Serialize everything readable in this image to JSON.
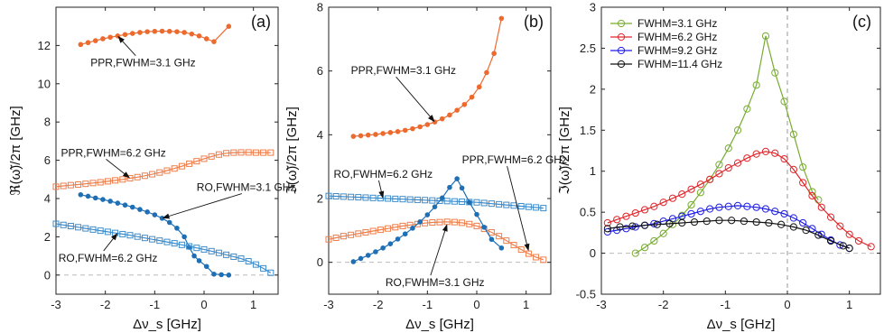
{
  "colors": {
    "ppr_orange": "#ED6A2E",
    "ro_blue": "#1F6FB5",
    "ppr_light": "#EE7E4A",
    "ro_light": "#3E8CCB",
    "c_green": "#77AC30",
    "c_red": "#E0262B",
    "c_blue": "#1E1EE6",
    "c_black": "#111111",
    "zero_line": "#BBBBBB"
  },
  "chart_data": [
    {
      "type": "line",
      "panel_label": "(a)",
      "xlabel": "Δν_s [GHz]",
      "ylabel": "ℜ(ω̃)/2π [GHz]",
      "xlim": [
        -3,
        1.5
      ],
      "ylim": [
        -1,
        14
      ],
      "xticks": [
        -3,
        -2,
        -1,
        0,
        1
      ],
      "yticks": [
        0,
        2,
        4,
        6,
        8,
        10,
        12
      ],
      "series": [
        {
          "name": "PPR,FWHM=3.1 GHz",
          "color_key": "ppr_orange",
          "marker": "dot",
          "x": [
            -2.5,
            -2.35,
            -2.2,
            -2.05,
            -1.9,
            -1.75,
            -1.6,
            -1.45,
            -1.3,
            -1.15,
            -1.0,
            -0.85,
            -0.7,
            -0.55,
            -0.4,
            -0.25,
            -0.1,
            0.05,
            0.2,
            0.5
          ],
          "y": [
            12.05,
            12.15,
            12.25,
            12.35,
            12.43,
            12.5,
            12.57,
            12.63,
            12.68,
            12.72,
            12.74,
            12.75,
            12.74,
            12.72,
            12.68,
            12.6,
            12.5,
            12.35,
            12.2,
            13.0
          ]
        },
        {
          "name": "PPR,FWHM=6.2 GHz",
          "color_key": "ppr_light",
          "marker": "square",
          "x": [
            -3.0,
            -2.85,
            -2.7,
            -2.55,
            -2.4,
            -2.25,
            -2.1,
            -1.95,
            -1.8,
            -1.65,
            -1.5,
            -1.35,
            -1.2,
            -1.05,
            -0.9,
            -0.75,
            -0.6,
            -0.45,
            -0.3,
            -0.15,
            0.0,
            0.15,
            0.3,
            0.45,
            0.6,
            0.75,
            0.9,
            1.05,
            1.2,
            1.35
          ],
          "y": [
            4.62,
            4.66,
            4.7,
            4.73,
            4.77,
            4.81,
            4.85,
            4.9,
            4.95,
            5.0,
            5.06,
            5.12,
            5.19,
            5.27,
            5.36,
            5.46,
            5.57,
            5.69,
            5.82,
            5.95,
            6.08,
            6.2,
            6.3,
            6.37,
            6.4,
            6.41,
            6.41,
            6.4,
            6.4,
            6.4
          ]
        },
        {
          "name": "RO,FWHM=3.1 GHz",
          "color_key": "ro_blue",
          "marker": "dot",
          "x": [
            -2.5,
            -2.35,
            -2.2,
            -2.05,
            -1.9,
            -1.75,
            -1.6,
            -1.45,
            -1.3,
            -1.15,
            -1.0,
            -0.85,
            -0.7,
            -0.55,
            -0.4,
            -0.3,
            -0.2,
            -0.1,
            0.05,
            0.2,
            0.35,
            0.5
          ],
          "y": [
            4.2,
            4.12,
            4.03,
            3.95,
            3.86,
            3.76,
            3.66,
            3.55,
            3.43,
            3.3,
            3.15,
            2.97,
            2.75,
            2.45,
            2.0,
            1.45,
            1.0,
            0.75,
            0.45,
            0.05,
            0.02,
            0.0
          ]
        },
        {
          "name": "RO,FWHM=6.2 GHz",
          "color_key": "ro_light",
          "marker": "square",
          "x": [
            -3.0,
            -2.85,
            -2.7,
            -2.55,
            -2.4,
            -2.25,
            -2.1,
            -1.95,
            -1.8,
            -1.65,
            -1.5,
            -1.35,
            -1.2,
            -1.05,
            -0.9,
            -0.75,
            -0.6,
            -0.45,
            -0.3,
            -0.15,
            0.0,
            0.15,
            0.3,
            0.45,
            0.6,
            0.75,
            0.9,
            1.05,
            1.2,
            1.35
          ],
          "y": [
            2.68,
            2.62,
            2.56,
            2.5,
            2.44,
            2.38,
            2.32,
            2.26,
            2.2,
            2.14,
            2.08,
            2.01,
            1.94,
            1.87,
            1.8,
            1.73,
            1.66,
            1.58,
            1.5,
            1.42,
            1.34,
            1.25,
            1.16,
            1.06,
            0.96,
            0.86,
            0.72,
            0.55,
            0.35,
            0.12
          ]
        }
      ],
      "annotations": [
        {
          "text": "PPR,FWHM=3.1 GHz",
          "tx": -2.3,
          "ty": 10.9,
          "ax": -1.75,
          "ay": 12.5
        },
        {
          "text": "PPR,FWHM=6.2 GHz",
          "tx": -2.9,
          "ty": 6.2,
          "ax": -1.5,
          "ay": 5.06
        },
        {
          "text": "RO,FWHM=3.1 GHz",
          "tx": -0.15,
          "ty": 4.4,
          "ax": -0.85,
          "ay": 2.97
        },
        {
          "text": "RO,FWHM=6.2 GHz",
          "tx": -2.95,
          "ty": 0.7,
          "ax": -1.75,
          "ay": 2.2
        }
      ]
    },
    {
      "type": "line",
      "panel_label": "(b)",
      "xlabel": "Δν_s [GHz]",
      "ylabel": "ℑ(ω̃)/2π [GHz]",
      "xlim": [
        -3,
        1.5
      ],
      "ylim": [
        -1,
        8
      ],
      "xticks": [
        -3,
        -2,
        -1,
        0,
        1
      ],
      "yticks": [
        0,
        2,
        4,
        6,
        8
      ],
      "series": [
        {
          "name": "PPR,FWHM=3.1 GHz",
          "color_key": "ppr_orange",
          "marker": "dot",
          "x": [
            -2.5,
            -2.35,
            -2.2,
            -2.05,
            -1.9,
            -1.75,
            -1.6,
            -1.45,
            -1.3,
            -1.15,
            -1.0,
            -0.85,
            -0.7,
            -0.55,
            -0.4,
            -0.25,
            -0.1,
            0.05,
            0.2,
            0.35,
            0.5
          ],
          "y": [
            3.95,
            3.97,
            3.99,
            4.01,
            4.04,
            4.07,
            4.1,
            4.14,
            4.19,
            4.25,
            4.32,
            4.4,
            4.5,
            4.62,
            4.77,
            4.95,
            5.18,
            5.5,
            5.95,
            6.55,
            7.65
          ]
        },
        {
          "name": "RO,FWHM=6.2 GHz",
          "color_key": "ro_light",
          "marker": "square",
          "x": [
            -3.0,
            -2.85,
            -2.7,
            -2.55,
            -2.4,
            -2.25,
            -2.1,
            -1.95,
            -1.8,
            -1.65,
            -1.5,
            -1.35,
            -1.2,
            -1.05,
            -0.9,
            -0.75,
            -0.6,
            -0.45,
            -0.3,
            -0.15,
            0.0,
            0.15,
            0.3,
            0.45,
            0.6,
            0.75,
            0.9,
            1.05,
            1.2,
            1.35
          ],
          "y": [
            2.08,
            2.07,
            2.06,
            2.05,
            2.04,
            2.03,
            2.02,
            2.01,
            2.0,
            1.99,
            1.98,
            1.97,
            1.96,
            1.95,
            1.94,
            1.93,
            1.92,
            1.91,
            1.9,
            1.89,
            1.88,
            1.86,
            1.84,
            1.82,
            1.8,
            1.78,
            1.76,
            1.74,
            1.72,
            1.7
          ]
        },
        {
          "name": "PPR,FWHM=6.2 GHz",
          "color_key": "ppr_light",
          "marker": "square",
          "x": [
            -3.0,
            -2.85,
            -2.7,
            -2.55,
            -2.4,
            -2.25,
            -2.1,
            -1.95,
            -1.8,
            -1.65,
            -1.5,
            -1.35,
            -1.2,
            -1.05,
            -0.9,
            -0.75,
            -0.6,
            -0.45,
            -0.3,
            -0.15,
            0.0,
            0.15,
            0.3,
            0.45,
            0.6,
            0.75,
            0.9,
            1.05,
            1.2,
            1.35
          ],
          "y": [
            0.72,
            0.77,
            0.82,
            0.86,
            0.9,
            0.94,
            0.98,
            1.02,
            1.06,
            1.1,
            1.14,
            1.17,
            1.2,
            1.23,
            1.25,
            1.26,
            1.27,
            1.26,
            1.24,
            1.2,
            1.14,
            1.05,
            0.94,
            0.82,
            0.68,
            0.54,
            0.4,
            0.27,
            0.16,
            0.08
          ]
        },
        {
          "name": "RO,FWHM=3.1 GHz",
          "color_key": "ro_blue",
          "marker": "dot",
          "x": [
            -2.5,
            -2.35,
            -2.2,
            -2.05,
            -1.9,
            -1.75,
            -1.6,
            -1.45,
            -1.3,
            -1.15,
            -1.0,
            -0.85,
            -0.7,
            -0.55,
            -0.4,
            -0.3,
            -0.15,
            0.0,
            0.15,
            0.3,
            0.5
          ],
          "y": [
            0.02,
            0.12,
            0.22,
            0.33,
            0.45,
            0.58,
            0.73,
            0.89,
            1.07,
            1.27,
            1.49,
            1.74,
            2.02,
            2.35,
            2.62,
            2.33,
            1.88,
            1.5,
            1.1,
            0.72,
            0.45
          ]
        }
      ],
      "annotations": [
        {
          "text": "PPR,FWHM=3.1 GHz",
          "tx": -2.55,
          "ty": 5.9,
          "ax": -0.85,
          "ay": 4.4
        },
        {
          "text": "RO,FWHM=6.2 GHz",
          "tx": -2.9,
          "ty": 2.65,
          "ax": -1.9,
          "ay": 2.0
        },
        {
          "text": "PPR,FWHM=6.2 GHz",
          "tx": -0.3,
          "ty": 3.1,
          "ax": 1.05,
          "ay": 0.35
        },
        {
          "text": "RO,FWHM=3.1 GHz",
          "tx": -1.85,
          "ty": -0.75,
          "ax": -0.6,
          "ay": 1.2
        }
      ]
    },
    {
      "type": "line",
      "panel_label": "(c)",
      "xlabel": "Δν_s [GHz]",
      "ylabel": "ℑ(ω̃)/2π [GHz]",
      "xlim": [
        -3,
        1.5
      ],
      "ylim": [
        -0.5,
        3
      ],
      "xticks": [
        -3,
        -2,
        -1,
        0,
        1
      ],
      "yticks": [
        -0.5,
        0,
        0.5,
        1,
        1.5,
        2,
        2.5,
        3
      ],
      "legend": "top-left",
      "series": [
        {
          "name": "FWHM=3.1 GHz",
          "color_key": "c_green",
          "x": [
            -2.45,
            -2.3,
            -2.15,
            -2.0,
            -1.85,
            -1.7,
            -1.55,
            -1.4,
            -1.25,
            -1.1,
            -0.95,
            -0.8,
            -0.65,
            -0.5,
            -0.35,
            -0.2,
            -0.05,
            0.1,
            0.25,
            0.4,
            0.5
          ],
          "y": [
            0.0,
            0.07,
            0.15,
            0.24,
            0.35,
            0.46,
            0.59,
            0.74,
            0.9,
            1.08,
            1.28,
            1.5,
            1.76,
            2.05,
            2.65,
            2.2,
            1.85,
            1.45,
            1.05,
            0.75,
            0.65
          ]
        },
        {
          "name": "FWHM=6.2 GHz",
          "color_key": "c_red",
          "x": [
            -2.9,
            -2.75,
            -2.6,
            -2.45,
            -2.3,
            -2.15,
            -2.0,
            -1.85,
            -1.7,
            -1.55,
            -1.4,
            -1.25,
            -1.1,
            -0.95,
            -0.8,
            -0.65,
            -0.5,
            -0.35,
            -0.2,
            -0.05,
            0.1,
            0.25,
            0.4,
            0.55,
            0.7,
            0.85,
            1.0,
            1.15,
            1.35
          ],
          "y": [
            0.37,
            0.41,
            0.45,
            0.49,
            0.53,
            0.57,
            0.62,
            0.67,
            0.72,
            0.78,
            0.84,
            0.9,
            0.97,
            1.04,
            1.1,
            1.16,
            1.21,
            1.24,
            1.22,
            1.15,
            1.02,
            0.86,
            0.7,
            0.56,
            0.44,
            0.33,
            0.23,
            0.15,
            0.08
          ]
        },
        {
          "name": "FWHM=9.2 GHz",
          "color_key": "c_blue",
          "x": [
            -2.9,
            -2.75,
            -2.6,
            -2.45,
            -2.3,
            -2.15,
            -2.0,
            -1.85,
            -1.7,
            -1.55,
            -1.4,
            -1.25,
            -1.1,
            -0.95,
            -0.8,
            -0.65,
            -0.5,
            -0.35,
            -0.2,
            -0.05,
            0.1,
            0.25,
            0.4,
            0.55,
            0.7,
            0.85,
            1.0
          ],
          "y": [
            0.26,
            0.28,
            0.3,
            0.32,
            0.34,
            0.36,
            0.39,
            0.42,
            0.45,
            0.48,
            0.51,
            0.54,
            0.56,
            0.57,
            0.58,
            0.57,
            0.56,
            0.54,
            0.51,
            0.48,
            0.43,
            0.37,
            0.3,
            0.23,
            0.16,
            0.1,
            0.06
          ]
        },
        {
          "name": "FWHM=11.4 GHz",
          "color_key": "c_black",
          "x": [
            -2.9,
            -2.7,
            -2.5,
            -2.3,
            -2.1,
            -1.9,
            -1.7,
            -1.5,
            -1.3,
            -1.1,
            -0.9,
            -0.7,
            -0.5,
            -0.3,
            -0.1,
            0.1,
            0.3,
            0.5,
            0.7,
            0.9,
            1.0
          ],
          "y": [
            0.3,
            0.32,
            0.33,
            0.34,
            0.35,
            0.36,
            0.37,
            0.38,
            0.39,
            0.4,
            0.4,
            0.39,
            0.38,
            0.37,
            0.35,
            0.32,
            0.28,
            0.22,
            0.15,
            0.09,
            0.06
          ]
        }
      ]
    }
  ]
}
